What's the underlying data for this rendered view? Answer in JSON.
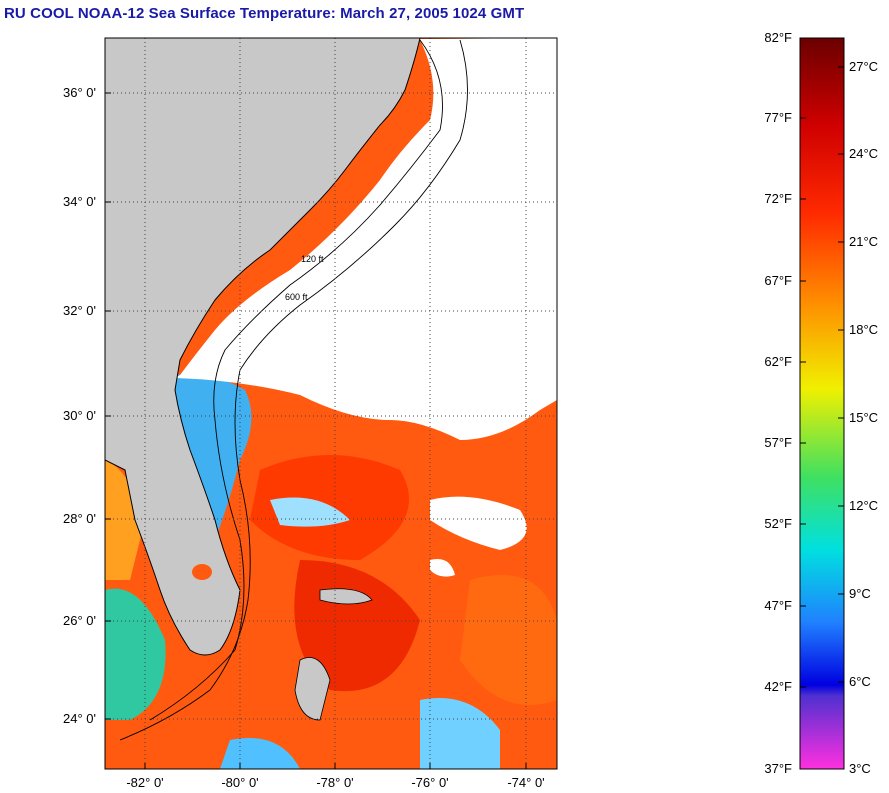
{
  "title": "RU COOL  NOAA-12  Sea Surface Temperature:  March 27, 2005 1024 GMT",
  "map": {
    "lat_labels": [
      "36° 0'",
      "34° 0'",
      "32° 0'",
      "30° 0'",
      "28° 0'",
      "26° 0'",
      "24° 0'"
    ],
    "lon_labels": [
      "-82° 0'",
      "-80° 0'",
      "-78° 0'",
      "-76° 0'",
      "-74° 0'"
    ],
    "contour_labels": [
      "120 ft",
      "600 ft"
    ],
    "colors": {
      "land": "#c8c8c8",
      "cloud": "#ffffff",
      "warm": "#ff4a00",
      "cool": "#2a8cff"
    }
  },
  "colorbar": {
    "fahrenheit": [
      "82°F",
      "77°F",
      "72°F",
      "67°F",
      "62°F",
      "57°F",
      "52°F",
      "47°F",
      "42°F",
      "37°F"
    ],
    "celsius": [
      "27°C",
      "24°C",
      "21°C",
      "18°C",
      "15°C",
      "12°C",
      "9°C",
      "6°C",
      "3°C"
    ]
  }
}
